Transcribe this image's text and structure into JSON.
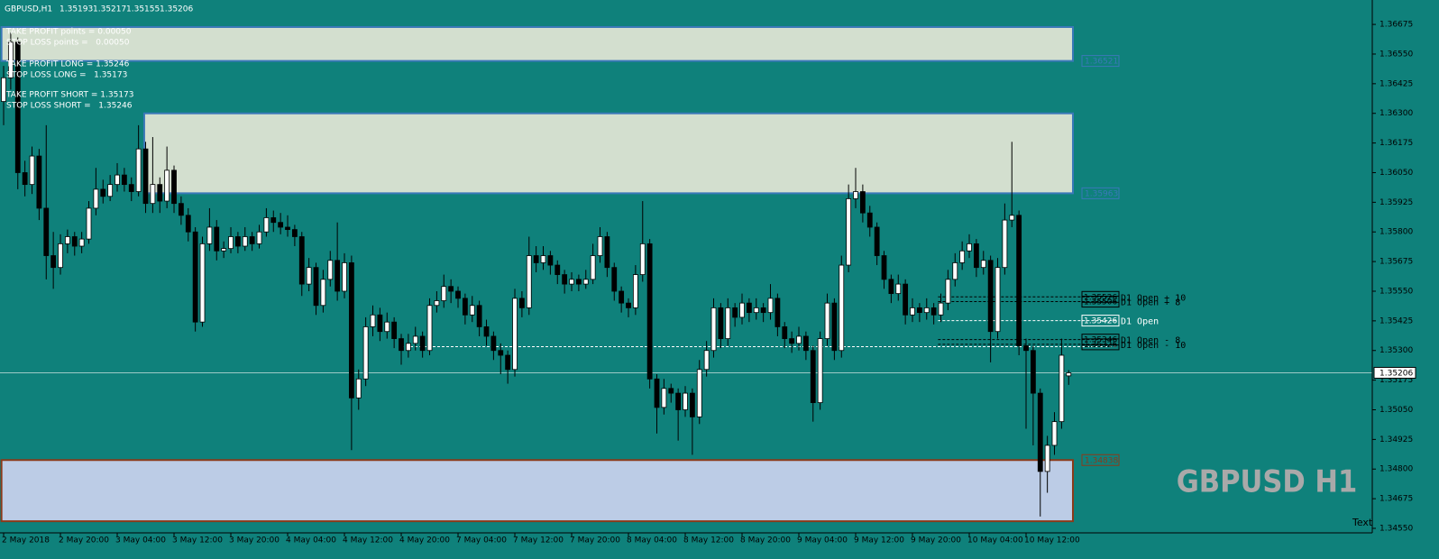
{
  "chart_data": {
    "type": "candlestick",
    "symbol": "GBPUSD,H1",
    "watermark": "GBPUSD H1",
    "corner_text": "Text",
    "background": "#0f817b",
    "up_color": "#ffffff",
    "down_color": "#000000",
    "wick_color": "#000000",
    "grid": false,
    "info_lines": [
      "TAKE PROFIT points = 0.00050",
      "STOP LOSS points =   0.00050",
      "TAKE PROFIT LONG = 1.35246",
      "STOP LOSS LONG =   1.35173",
      "TAKE PROFIT SHORT = 1.35173",
      "STOP LOSS SHORT =   1.35246"
    ],
    "ylim": [
      1.34531,
      1.36778
    ],
    "xlim": [
      -0.51,
      192.76
    ],
    "yticks": [
      {
        "value": 1.3455,
        "label": "1.34550"
      },
      1.34675,
      {
        "value": 1.348,
        "label": "1.34800"
      },
      1.34925,
      {
        "value": 1.3505,
        "label": "1.35050"
      },
      1.35175,
      {
        "value": 1.353,
        "label": "1.35300"
      },
      1.35425,
      {
        "value": 1.3555,
        "label": "1.35550"
      },
      1.35675,
      {
        "value": 1.358,
        "label": "1.35800"
      },
      1.35925,
      {
        "value": 1.3605,
        "label": "1.36050"
      },
      1.36175,
      {
        "value": 1.363,
        "label": "1.36300"
      },
      1.36425,
      {
        "value": 1.3655,
        "label": "1.36550"
      },
      1.36675
    ],
    "xticks": [
      {
        "value": 0,
        "label": "2 May 2018"
      },
      {
        "value": 8,
        "label": "2 May 20:00"
      },
      {
        "value": 16,
        "label": "3 May 04:00"
      },
      {
        "value": 24,
        "label": "3 May 12:00"
      },
      {
        "value": 32,
        "label": "3 May 20:00"
      },
      {
        "value": 40,
        "label": "4 May 04:00"
      },
      {
        "value": 48,
        "label": "4 May 12:00"
      },
      {
        "value": 56,
        "label": "4 May 20:00"
      },
      {
        "value": 64,
        "label": "7 May 04:00"
      },
      {
        "value": 72,
        "label": "7 May 12:00"
      },
      {
        "value": 80,
        "label": "7 May 20:00"
      },
      {
        "value": 88,
        "label": "8 May 04:00"
      },
      {
        "value": 96,
        "label": "8 May 12:00"
      },
      {
        "value": 104,
        "label": "8 May 20:00"
      },
      {
        "value": 112,
        "label": "9 May 04:00"
      },
      {
        "value": 120,
        "label": "9 May 12:00"
      },
      {
        "value": 128,
        "label": "9 May 20:00"
      },
      {
        "value": 136,
        "label": "10 May 04:00"
      },
      {
        "value": 144,
        "label": "10 May 12:00"
      }
    ],
    "zones": [
      {
        "from": -0.3,
        "to": 150.6,
        "top": 1.36664,
        "price": 1.36521,
        "fill": "#d3dfcf",
        "stroke": "#3a78b8"
      },
      {
        "from": 19.8,
        "to": 150.6,
        "top": 1.363,
        "price": 1.35963,
        "fill": "#d3dfcf",
        "stroke": "#3a78b8"
      },
      {
        "from": -0.3,
        "to": 150.6,
        "top": 1.34838,
        "price": 1.34838,
        "bottom": 1.3458,
        "fill": "#bccce6",
        "stroke": "#8b3a1a"
      }
    ],
    "levels": [
      {
        "value": 1.35526,
        "text": "D1 Open + 10",
        "color": "#000000"
      },
      {
        "value": 1.35506,
        "text": "D1 Open + 8",
        "color": "#000000"
      },
      {
        "value": 1.35426,
        "text": "D1 Open",
        "color": "#ffffff"
      },
      {
        "value": 1.35346,
        "text": "D1 Open - 8",
        "color": "#000000"
      },
      {
        "value": 1.35326,
        "text": "D1 Open - 10",
        "color": "#000000"
      }
    ],
    "levels_from": 131.6,
    "previous_open": 1.35316,
    "previous_open_from": 56,
    "candles": [
      [
        1.3635,
        1.365,
        1.3625,
        1.3645
      ],
      [
        1.3645,
        1.3664,
        1.364,
        1.366
      ],
      [
        1.366,
        1.3662,
        1.3598,
        1.3605
      ],
      [
        1.3605,
        1.361,
        1.3595,
        1.36
      ],
      [
        1.36,
        1.3616,
        1.3596,
        1.3612
      ],
      [
        1.3612,
        1.3615,
        1.3585,
        1.359
      ],
      [
        1.359,
        1.3625,
        1.356,
        1.357
      ],
      [
        1.357,
        1.358,
        1.3556,
        1.3565
      ],
      [
        1.3565,
        1.3579,
        1.3562,
        1.3575
      ],
      [
        1.3575,
        1.3581,
        1.3571,
        1.3578
      ],
      [
        1.3578,
        1.358,
        1.357,
        1.3574
      ],
      [
        1.3574,
        1.358,
        1.3571,
        1.3577
      ],
      [
        1.3577,
        1.3593,
        1.3575,
        1.359
      ],
      [
        1.359,
        1.3607,
        1.3587,
        1.3598
      ],
      [
        1.3598,
        1.3602,
        1.3592,
        1.3595
      ],
      [
        1.3595,
        1.3604,
        1.3593,
        1.36
      ],
      [
        1.36,
        1.3609,
        1.3597,
        1.3604
      ],
      [
        1.3604,
        1.3607,
        1.3597,
        1.36
      ],
      [
        1.36,
        1.3603,
        1.3593,
        1.3597
      ],
      [
        1.3597,
        1.3625,
        1.3595,
        1.3615
      ],
      [
        1.3615,
        1.3618,
        1.3588,
        1.3592
      ],
      [
        1.3592,
        1.362,
        1.3588,
        1.36
      ],
      [
        1.36,
        1.3603,
        1.3588,
        1.3593
      ],
      [
        1.3593,
        1.3616,
        1.359,
        1.3606
      ],
      [
        1.3606,
        1.3608,
        1.3588,
        1.3592
      ],
      [
        1.3592,
        1.3595,
        1.3583,
        1.3587
      ],
      [
        1.3587,
        1.359,
        1.3576,
        1.358
      ],
      [
        1.358,
        1.3582,
        1.3538,
        1.3542
      ],
      [
        1.3542,
        1.3578,
        1.354,
        1.3575
      ],
      [
        1.3575,
        1.359,
        1.3572,
        1.3582
      ],
      [
        1.3582,
        1.3585,
        1.3568,
        1.3572
      ],
      [
        1.3572,
        1.3576,
        1.3569,
        1.3573
      ],
      [
        1.3573,
        1.3582,
        1.3571,
        1.3578
      ],
      [
        1.3578,
        1.358,
        1.3571,
        1.3574
      ],
      [
        1.3574,
        1.3582,
        1.3572,
        1.3578
      ],
      [
        1.3578,
        1.358,
        1.3572,
        1.3575
      ],
      [
        1.3575,
        1.3583,
        1.3573,
        1.358
      ],
      [
        1.358,
        1.359,
        1.3578,
        1.3586
      ],
      [
        1.3586,
        1.3589,
        1.358,
        1.3584
      ],
      [
        1.3584,
        1.3588,
        1.3579,
        1.3582
      ],
      [
        1.3582,
        1.3587,
        1.3578,
        1.3581
      ],
      [
        1.3581,
        1.3583,
        1.3574,
        1.3578
      ],
      [
        1.3578,
        1.358,
        1.3553,
        1.3558
      ],
      [
        1.3558,
        1.3569,
        1.3555,
        1.3565
      ],
      [
        1.3565,
        1.3567,
        1.3545,
        1.3549
      ],
      [
        1.3549,
        1.3564,
        1.3546,
        1.356
      ],
      [
        1.356,
        1.3572,
        1.3557,
        1.3568
      ],
      [
        1.3568,
        1.3584,
        1.3551,
        1.3555
      ],
      [
        1.3555,
        1.3571,
        1.3552,
        1.3567
      ],
      [
        1.3567,
        1.357,
        1.3488,
        1.351
      ],
      [
        1.351,
        1.3522,
        1.3505,
        1.3518
      ],
      [
        1.3518,
        1.3544,
        1.3515,
        1.354
      ],
      [
        1.354,
        1.3549,
        1.3536,
        1.3545
      ],
      [
        1.3545,
        1.3548,
        1.3534,
        1.3538
      ],
      [
        1.3538,
        1.3546,
        1.3535,
        1.3542
      ],
      [
        1.3542,
        1.3544,
        1.3531,
        1.3535
      ],
      [
        1.3535,
        1.3537,
        1.3524,
        1.353
      ],
      [
        1.353,
        1.3537,
        1.3527,
        1.3533
      ],
      [
        1.3533,
        1.354,
        1.353,
        1.3536
      ],
      [
        1.3536,
        1.3538,
        1.3527,
        1.353
      ],
      [
        1.353,
        1.3552,
        1.3528,
        1.3549
      ],
      [
        1.3549,
        1.3555,
        1.3546,
        1.3551
      ],
      [
        1.3551,
        1.3562,
        1.3548,
        1.3557
      ],
      [
        1.3557,
        1.356,
        1.355,
        1.3555
      ],
      [
        1.3555,
        1.3557,
        1.3548,
        1.3552
      ],
      [
        1.3552,
        1.3554,
        1.3541,
        1.3545
      ],
      [
        1.3545,
        1.3553,
        1.3542,
        1.3549
      ],
      [
        1.3549,
        1.3551,
        1.3536,
        1.354
      ],
      [
        1.354,
        1.3543,
        1.3532,
        1.3536
      ],
      [
        1.3536,
        1.3538,
        1.3526,
        1.353
      ],
      [
        1.353,
        1.3533,
        1.352,
        1.3528
      ],
      [
        1.3528,
        1.353,
        1.3516,
        1.3522
      ],
      [
        1.3522,
        1.3556,
        1.3519,
        1.3552
      ],
      [
        1.3552,
        1.3555,
        1.3544,
        1.3548
      ],
      [
        1.3548,
        1.3578,
        1.3545,
        1.357
      ],
      [
        1.357,
        1.3574,
        1.3563,
        1.3567
      ],
      [
        1.3567,
        1.3574,
        1.3564,
        1.357
      ],
      [
        1.357,
        1.3572,
        1.3562,
        1.3566
      ],
      [
        1.3566,
        1.3568,
        1.3558,
        1.3562
      ],
      [
        1.3562,
        1.3564,
        1.3554,
        1.3558
      ],
      [
        1.3558,
        1.3563,
        1.3555,
        1.356
      ],
      [
        1.356,
        1.3562,
        1.3555,
        1.3558
      ],
      [
        1.3558,
        1.3564,
        1.3556,
        1.356
      ],
      [
        1.356,
        1.3575,
        1.3558,
        1.357
      ],
      [
        1.357,
        1.3582,
        1.3567,
        1.3578
      ],
      [
        1.3578,
        1.358,
        1.3561,
        1.3565
      ],
      [
        1.3565,
        1.3567,
        1.3551,
        1.3555
      ],
      [
        1.3555,
        1.3557,
        1.3546,
        1.355
      ],
      [
        1.355,
        1.3552,
        1.3544,
        1.3548
      ],
      [
        1.3548,
        1.3566,
        1.3545,
        1.3562
      ],
      [
        1.3562,
        1.3593,
        1.3559,
        1.3575
      ],
      [
        1.3575,
        1.3577,
        1.3514,
        1.3518
      ],
      [
        1.3518,
        1.352,
        1.3495,
        1.3506
      ],
      [
        1.3506,
        1.3518,
        1.3503,
        1.3514
      ],
      [
        1.3514,
        1.3516,
        1.3508,
        1.3512
      ],
      [
        1.3512,
        1.3514,
        1.3492,
        1.3505
      ],
      [
        1.3505,
        1.3515,
        1.3502,
        1.3512
      ],
      [
        1.3512,
        1.3514,
        1.3486,
        1.3502
      ],
      [
        1.3502,
        1.3526,
        1.3499,
        1.3522
      ],
      [
        1.3522,
        1.3534,
        1.3519,
        1.353
      ],
      [
        1.353,
        1.3552,
        1.3527,
        1.3548
      ],
      [
        1.3548,
        1.355,
        1.3531,
        1.3535
      ],
      [
        1.3535,
        1.3552,
        1.3532,
        1.3548
      ],
      [
        1.3548,
        1.355,
        1.354,
        1.3544
      ],
      [
        1.3544,
        1.3554,
        1.3541,
        1.355
      ],
      [
        1.355,
        1.3552,
        1.3542,
        1.3546
      ],
      [
        1.3546,
        1.3552,
        1.3543,
        1.3548
      ],
      [
        1.3548,
        1.355,
        1.3542,
        1.3546
      ],
      [
        1.3546,
        1.3558,
        1.3543,
        1.3552
      ],
      [
        1.3552,
        1.3554,
        1.3536,
        1.354
      ],
      [
        1.354,
        1.3542,
        1.3531,
        1.3535
      ],
      [
        1.3535,
        1.3538,
        1.3529,
        1.3533
      ],
      [
        1.3533,
        1.354,
        1.353,
        1.3536
      ],
      [
        1.3536,
        1.3538,
        1.3526,
        1.353
      ],
      [
        1.353,
        1.3532,
        1.35,
        1.3508
      ],
      [
        1.3508,
        1.3538,
        1.3505,
        1.3535
      ],
      [
        1.3535,
        1.3554,
        1.3532,
        1.355
      ],
      [
        1.355,
        1.3552,
        1.3526,
        1.353
      ],
      [
        1.353,
        1.357,
        1.3527,
        1.3566
      ],
      [
        1.3566,
        1.36,
        1.3563,
        1.3594
      ],
      [
        1.3594,
        1.3607,
        1.359,
        1.3597
      ],
      [
        1.3597,
        1.36,
        1.3584,
        1.3588
      ],
      [
        1.3588,
        1.3591,
        1.3578,
        1.3582
      ],
      [
        1.3582,
        1.3584,
        1.3566,
        1.357
      ],
      [
        1.357,
        1.3572,
        1.3556,
        1.356
      ],
      [
        1.356,
        1.3562,
        1.355,
        1.3554
      ],
      [
        1.3554,
        1.3562,
        1.3551,
        1.3558
      ],
      [
        1.3558,
        1.356,
        1.3541,
        1.3545
      ],
      [
        1.3545,
        1.3552,
        1.3542,
        1.3548
      ],
      [
        1.3548,
        1.355,
        1.3542,
        1.3546
      ],
      [
        1.3546,
        1.3552,
        1.3543,
        1.3548
      ],
      [
        1.3548,
        1.355,
        1.3541,
        1.3545
      ],
      [
        1.3545,
        1.3554,
        1.3542,
        1.355
      ],
      [
        1.355,
        1.3564,
        1.3547,
        1.356
      ],
      [
        1.356,
        1.3571,
        1.3557,
        1.3567
      ],
      [
        1.3567,
        1.3576,
        1.3564,
        1.3572
      ],
      [
        1.3572,
        1.3579,
        1.3569,
        1.3575
      ],
      [
        1.3575,
        1.3577,
        1.3561,
        1.3565
      ],
      [
        1.3565,
        1.3572,
        1.3562,
        1.3568
      ],
      [
        1.3568,
        1.357,
        1.3525,
        1.3538
      ],
      [
        1.3538,
        1.3569,
        1.3535,
        1.3565
      ],
      [
        1.3565,
        1.3592,
        1.3562,
        1.3585
      ],
      [
        1.3585,
        1.3618,
        1.3582,
        1.3587
      ],
      [
        1.3587,
        1.3589,
        1.3528,
        1.3532
      ],
      [
        1.3532,
        1.3535,
        1.3497,
        1.353
      ],
      [
        1.353,
        1.3532,
        1.349,
        1.3512
      ],
      [
        1.3512,
        1.3514,
        1.346,
        1.3479
      ],
      [
        1.3479,
        1.3494,
        1.347,
        1.349
      ],
      [
        1.349,
        1.3504,
        1.3486,
        1.35
      ],
      [
        1.35,
        1.3535,
        1.3497,
        1.3528
      ],
      [
        1.35193,
        1.35217,
        1.35155,
        1.35206
      ]
    ]
  }
}
